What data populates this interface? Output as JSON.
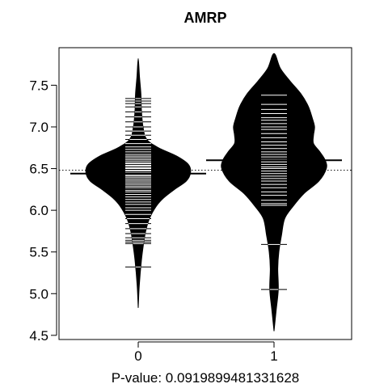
{
  "chart_data": {
    "type": "beanplot",
    "title": "AMRP",
    "xlabel": "P-value: 0.0919899481331628",
    "ylabel": "",
    "categories": [
      "0",
      "1"
    ],
    "ylim": [
      4.45,
      7.95
    ],
    "yticks": [
      4.5,
      5.0,
      5.5,
      6.0,
      6.5,
      7.0,
      7.5
    ],
    "ytick_labels": [
      "4.5",
      "5.0",
      "5.5",
      "6.0",
      "6.5",
      "7.0",
      "7.5"
    ],
    "overall_mean": 6.48,
    "grid": false,
    "beans": [
      {
        "category": "0",
        "mean": 6.44,
        "density_profile": [
          [
            4.83,
            0.0
          ],
          [
            5.1,
            0.01
          ],
          [
            5.4,
            0.03
          ],
          [
            5.6,
            0.05
          ],
          [
            5.75,
            0.07
          ],
          [
            5.9,
            0.105
          ],
          [
            6.05,
            0.17
          ],
          [
            6.15,
            0.24
          ],
          [
            6.25,
            0.34
          ],
          [
            6.35,
            0.45
          ],
          [
            6.45,
            0.49
          ],
          [
            6.55,
            0.47
          ],
          [
            6.65,
            0.36
          ],
          [
            6.75,
            0.19
          ],
          [
            6.85,
            0.08
          ],
          [
            7.0,
            0.045
          ],
          [
            7.2,
            0.03
          ],
          [
            7.4,
            0.025
          ],
          [
            7.6,
            0.012
          ],
          [
            7.82,
            0.0
          ]
        ],
        "observations": [
          5.32,
          5.6,
          5.62,
          5.64,
          5.67,
          5.72,
          5.78,
          5.84,
          5.9,
          5.95,
          6.0,
          6.03,
          6.07,
          6.1,
          6.13,
          6.16,
          6.19,
          6.22,
          6.24,
          6.27,
          6.29,
          6.31,
          6.33,
          6.35,
          6.37,
          6.39,
          6.41,
          6.42,
          6.44,
          6.45,
          6.47,
          6.48,
          6.5,
          6.51,
          6.53,
          6.54,
          6.56,
          6.57,
          6.59,
          6.61,
          6.63,
          6.65,
          6.67,
          6.7,
          6.73,
          6.76,
          6.8,
          6.85,
          6.9,
          6.95,
          7.0,
          7.06,
          7.12,
          7.18,
          7.24,
          7.28,
          7.31,
          7.34
        ]
      },
      {
        "category": "1",
        "mean": 6.6,
        "density_profile": [
          [
            4.55,
            0.0
          ],
          [
            4.8,
            0.02
          ],
          [
            5.05,
            0.04
          ],
          [
            5.3,
            0.035
          ],
          [
            5.5,
            0.045
          ],
          [
            5.7,
            0.07
          ],
          [
            5.9,
            0.1
          ],
          [
            6.05,
            0.18
          ],
          [
            6.2,
            0.28
          ],
          [
            6.35,
            0.42
          ],
          [
            6.5,
            0.49
          ],
          [
            6.6,
            0.48
          ],
          [
            6.7,
            0.43
          ],
          [
            6.8,
            0.37
          ],
          [
            6.9,
            0.37
          ],
          [
            7.0,
            0.38
          ],
          [
            7.1,
            0.36
          ],
          [
            7.25,
            0.32
          ],
          [
            7.4,
            0.25
          ],
          [
            7.55,
            0.15
          ],
          [
            7.7,
            0.06
          ],
          [
            7.88,
            0.0
          ]
        ],
        "observations": [
          5.05,
          5.59,
          6.06,
          6.08,
          6.12,
          6.18,
          6.22,
          6.27,
          6.31,
          6.35,
          6.38,
          6.41,
          6.44,
          6.47,
          6.5,
          6.52,
          6.55,
          6.58,
          6.61,
          6.64,
          6.67,
          6.7,
          6.74,
          6.78,
          6.82,
          6.87,
          6.92,
          6.97,
          7.0,
          7.04,
          7.08,
          7.11,
          7.16,
          7.21,
          7.27,
          7.38
        ]
      }
    ]
  }
}
